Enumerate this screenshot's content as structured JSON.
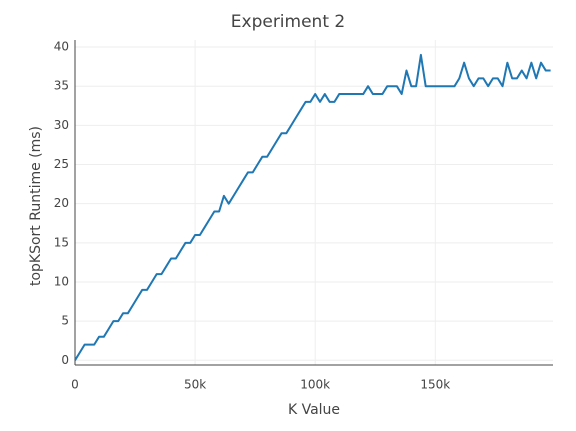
{
  "chart_data": {
    "type": "line",
    "title": "Experiment 2",
    "x_label": "K Value",
    "y_label": "topKSort Runtime (ms)",
    "x": [
      0,
      2000,
      4000,
      6000,
      8000,
      10000,
      12000,
      14000,
      16000,
      18000,
      20000,
      22000,
      24000,
      26000,
      28000,
      30000,
      32000,
      34000,
      36000,
      38000,
      40000,
      42000,
      44000,
      46000,
      48000,
      50000,
      52000,
      54000,
      56000,
      58000,
      60000,
      62000,
      64000,
      66000,
      68000,
      70000,
      72000,
      74000,
      76000,
      78000,
      80000,
      82000,
      84000,
      86000,
      88000,
      90000,
      92000,
      94000,
      96000,
      98000,
      100000,
      102000,
      104000,
      106000,
      108000,
      110000,
      112000,
      114000,
      116000,
      118000,
      120000,
      122000,
      124000,
      126000,
      128000,
      130000,
      132000,
      134000,
      136000,
      138000,
      140000,
      142000,
      144000,
      146000,
      148000,
      150000,
      152000,
      154000,
      156000,
      158000,
      160000,
      162000,
      164000,
      166000,
      168000,
      170000,
      172000,
      174000,
      176000,
      178000,
      180000,
      182000,
      184000,
      186000,
      188000,
      190000,
      192000,
      194000,
      196000,
      198000
    ],
    "series": [
      {
        "name": "topKSort",
        "color": "#1f77b4",
        "values": [
          0,
          1,
          2,
          2,
          2,
          3,
          3,
          4,
          5,
          5,
          6,
          6,
          7,
          8,
          9,
          9,
          10,
          11,
          11,
          12,
          13,
          13,
          14,
          15,
          15,
          16,
          16,
          17,
          18,
          19,
          19,
          21,
          20,
          21,
          22,
          23,
          24,
          24,
          25,
          26,
          26,
          27,
          28,
          29,
          29,
          30,
          31,
          32,
          33,
          33,
          34,
          33,
          34,
          33,
          33,
          34,
          34,
          34,
          34,
          34,
          34,
          35,
          34,
          34,
          34,
          35,
          35,
          35,
          34,
          37,
          35,
          35,
          39,
          35,
          35,
          35,
          35,
          35,
          35,
          35,
          36,
          38,
          36,
          35,
          36,
          36,
          35,
          36,
          36,
          35,
          38,
          36,
          36,
          37,
          36,
          38,
          36,
          38,
          37,
          37
        ]
      }
    ],
    "xlim": [
      0,
      199000
    ],
    "ylim": [
      -0.6,
      40.9
    ],
    "xticks": [
      0,
      {
        "value": 50000,
        "label": "50k"
      },
      {
        "value": 100000,
        "label": "100k"
      },
      {
        "value": 150000,
        "label": "150k"
      }
    ],
    "yticks": [
      0,
      5,
      10,
      15,
      20,
      25,
      30,
      35,
      40
    ],
    "grid": true
  }
}
